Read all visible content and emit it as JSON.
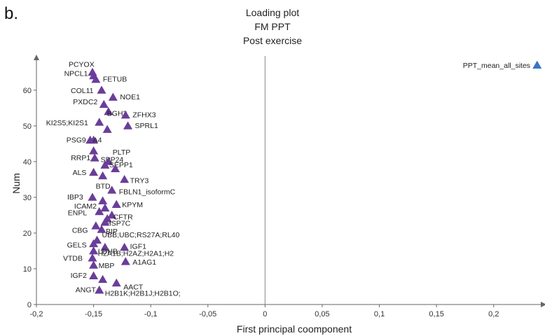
{
  "panel_label": "b.",
  "chart_data": {
    "type": "scatter",
    "title_lines": [
      "Loading plot",
      "FM PPT",
      "Post exercise"
    ],
    "xlabel": "First principal coomponent",
    "ylabel": "Num",
    "xlim": [
      -0.2,
      0.24
    ],
    "ylim": [
      0,
      68
    ],
    "x_ticks": [
      {
        "value": -0.2,
        "label": "-0,2"
      },
      {
        "value": -0.15,
        "label": "-0,15"
      },
      {
        "value": -0.1,
        "label": "-0,1"
      },
      {
        "value": -0.05,
        "label": "-0,05"
      },
      {
        "value": 0,
        "label": "0"
      },
      {
        "value": 0.05,
        "label": "0,05"
      },
      {
        "value": 0.1,
        "label": "0,1"
      },
      {
        "value": 0.15,
        "label": "0,15"
      },
      {
        "value": 0.2,
        "label": "0,2"
      }
    ],
    "y_ticks": [
      {
        "value": 0,
        "label": "0"
      },
      {
        "value": 10,
        "label": "10"
      },
      {
        "value": 20,
        "label": "20"
      },
      {
        "value": 30,
        "label": "30"
      },
      {
        "value": 40,
        "label": "40"
      },
      {
        "value": 50,
        "label": "50"
      },
      {
        "value": 60,
        "label": "60"
      }
    ],
    "zero_line_x": 0,
    "grid": false,
    "marker": "triangle",
    "colors": {
      "variables": "#6a3d9a",
      "response": "#3b73c5"
    },
    "points": [
      {
        "label": "PCYOX",
        "x": -0.151,
        "y": 65,
        "group": "variables"
      },
      {
        "label": "NPCL1",
        "x": -0.15,
        "y": 64,
        "group": "variables"
      },
      {
        "label": "FETUB",
        "x": -0.148,
        "y": 63,
        "group": "variables"
      },
      {
        "label": "COL11",
        "x": -0.143,
        "y": 60,
        "group": "variables"
      },
      {
        "label": "NOE1",
        "x": -0.133,
        "y": 58,
        "group": "variables"
      },
      {
        "label": "PXDC2",
        "x": -0.141,
        "y": 56,
        "group": "variables"
      },
      {
        "label": "BGH3",
        "x": -0.137,
        "y": 54,
        "group": "variables"
      },
      {
        "label": "ZFHX3",
        "x": -0.122,
        "y": 53,
        "group": "variables"
      },
      {
        "label": "KI2S5;KI2S1",
        "x": -0.145,
        "y": 51,
        "group": "variables"
      },
      {
        "label": "SPRL1",
        "x": -0.12,
        "y": 50,
        "group": "variables"
      },
      {
        "label": "",
        "x": -0.138,
        "y": 49,
        "group": "variables"
      },
      {
        "label": "PSG9",
        "x": -0.153,
        "y": 46,
        "group": "variables"
      },
      {
        "label": "A4",
        "x": -0.15,
        "y": 46,
        "group": "variables"
      },
      {
        "label": "SPP24",
        "x": -0.15,
        "y": 43,
        "group": "variables"
      },
      {
        "label": "PLTP",
        "x": -0.137,
        "y": 40,
        "group": "variables"
      },
      {
        "label": "RRP1",
        "x": -0.149,
        "y": 41,
        "group": "variables"
      },
      {
        "label": "SEPP1",
        "x": -0.14,
        "y": 39,
        "group": "variables"
      },
      {
        "label": "",
        "x": -0.131,
        "y": 38,
        "group": "variables"
      },
      {
        "label": "ALS",
        "x": -0.15,
        "y": 37,
        "group": "variables"
      },
      {
        "label": "BTD",
        "x": -0.142,
        "y": 36,
        "group": "variables"
      },
      {
        "label": "TRY3",
        "x": -0.123,
        "y": 35,
        "group": "variables"
      },
      {
        "label": "FBLN1_isoformC",
        "x": -0.134,
        "y": 32,
        "group": "variables"
      },
      {
        "label": "IBP3",
        "x": -0.151,
        "y": 30,
        "group": "variables"
      },
      {
        "label": "",
        "x": -0.142,
        "y": 29,
        "group": "variables"
      },
      {
        "label": "KPYM",
        "x": -0.13,
        "y": 28,
        "group": "variables"
      },
      {
        "label": "ICAM2",
        "x": -0.14,
        "y": 27,
        "group": "variables"
      },
      {
        "label": "ENPL",
        "x": -0.145,
        "y": 26,
        "group": "variables"
      },
      {
        "label": "CFTR",
        "x": -0.134,
        "y": 25,
        "group": "variables"
      },
      {
        "label": "HSP7C",
        "x": -0.138,
        "y": 24,
        "group": "variables"
      },
      {
        "label": "",
        "x": -0.14,
        "y": 23,
        "group": "variables"
      },
      {
        "label": "CBG",
        "x": -0.148,
        "y": 22,
        "group": "variables"
      },
      {
        "label": "BIP",
        "x": -0.143,
        "y": 21,
        "group": "variables"
      },
      {
        "label": "UBB;UBC;RS27A;RL40",
        "x": -0.147,
        "y": 18,
        "group": "variables"
      },
      {
        "label": "GELS",
        "x": -0.15,
        "y": 17,
        "group": "variables"
      },
      {
        "label": "IGF1",
        "x": -0.123,
        "y": 16,
        "group": "variables"
      },
      {
        "label": "LDHB",
        "x": -0.14,
        "y": 16,
        "group": "variables"
      },
      {
        "label": "H2A1B;H2AZ;H2A1;H2",
        "x": -0.15,
        "y": 15,
        "group": "variables"
      },
      {
        "label": "VTDB",
        "x": -0.151,
        "y": 13,
        "group": "variables"
      },
      {
        "label": "A1AG1",
        "x": -0.122,
        "y": 12,
        "group": "variables"
      },
      {
        "label": "MBP",
        "x": -0.15,
        "y": 11,
        "group": "variables"
      },
      {
        "label": "IGF2",
        "x": -0.15,
        "y": 8,
        "group": "variables"
      },
      {
        "label": "",
        "x": -0.142,
        "y": 7,
        "group": "variables"
      },
      {
        "label": "AACT",
        "x": -0.13,
        "y": 6,
        "group": "variables"
      },
      {
        "label": "ANGT",
        "x": -0.145,
        "y": 4,
        "group": "variables"
      },
      {
        "label": "H2B1K;H2B1J;H2B1O;",
        "x": -0.145,
        "y": 4,
        "group": "variables"
      },
      {
        "label": "PPT_mean_all_sites",
        "x": 0.238,
        "y": 67,
        "group": "response"
      }
    ]
  }
}
